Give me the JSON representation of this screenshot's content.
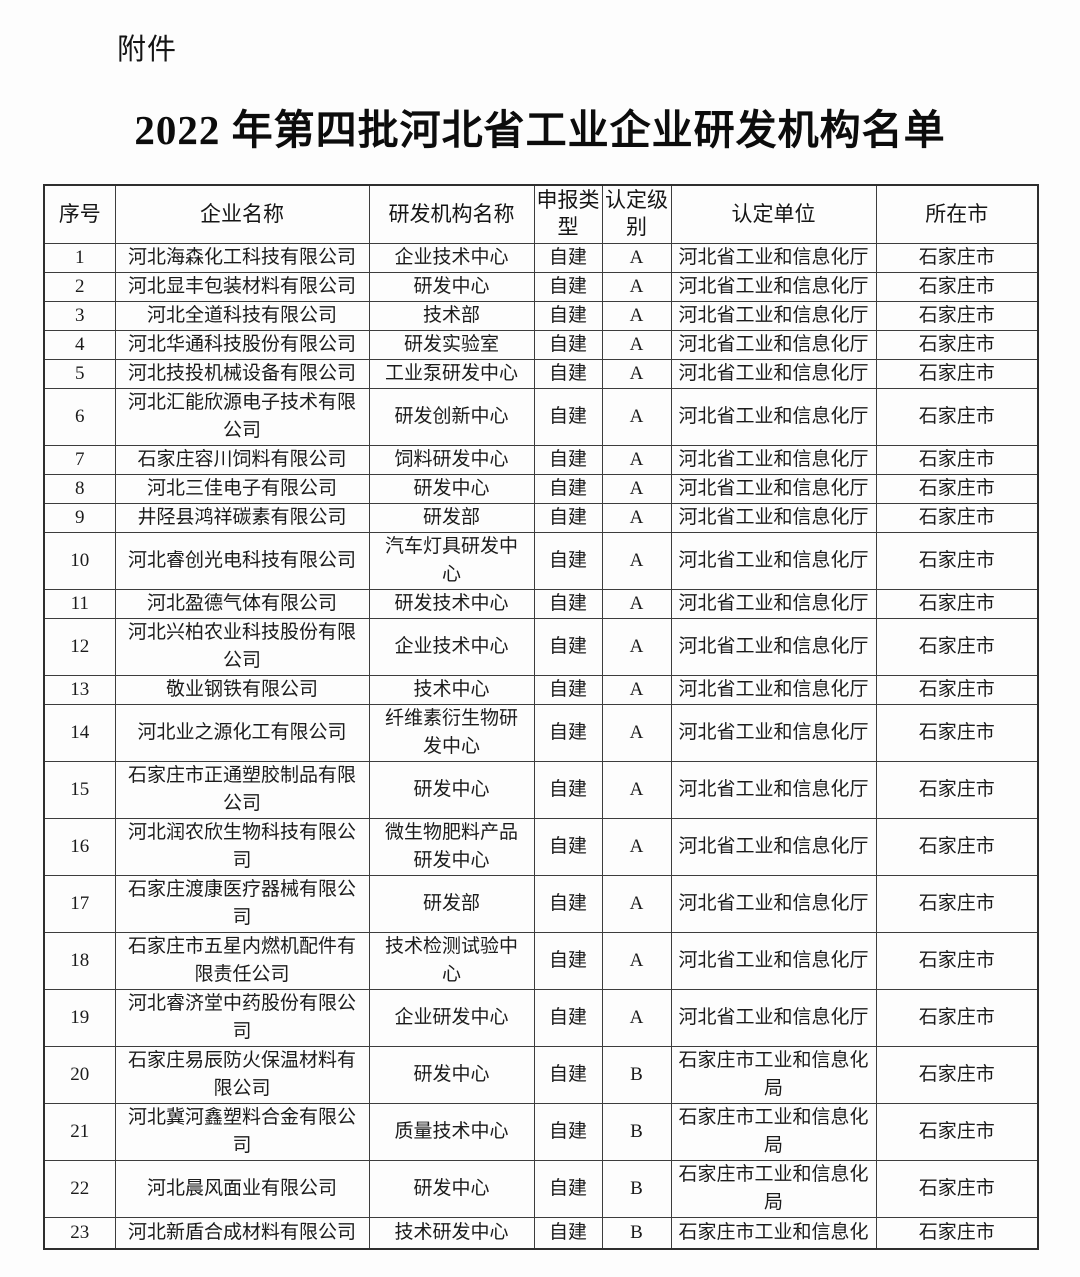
{
  "page": {
    "attachment_label": "附件",
    "title": "2022 年第四批河北省工业企业研发机构名单"
  },
  "table": {
    "headers": [
      "序号",
      "企业名称",
      "研发机构名称",
      "申报类型",
      "认定级别",
      "认定单位",
      "所在市"
    ],
    "rows": [
      [
        "1",
        "河北海森化工科技有限公司",
        "企业技术中心",
        "自建",
        "A",
        "河北省工业和信息化厅",
        "石家庄市"
      ],
      [
        "2",
        "河北显丰包装材料有限公司",
        "研发中心",
        "自建",
        "A",
        "河北省工业和信息化厅",
        "石家庄市"
      ],
      [
        "3",
        "河北全道科技有限公司",
        "技术部",
        "自建",
        "A",
        "河北省工业和信息化厅",
        "石家庄市"
      ],
      [
        "4",
        "河北华通科技股份有限公司",
        "研发实验室",
        "自建",
        "A",
        "河北省工业和信息化厅",
        "石家庄市"
      ],
      [
        "5",
        "河北技投机械设备有限公司",
        "工业泵研发中心",
        "自建",
        "A",
        "河北省工业和信息化厅",
        "石家庄市"
      ],
      [
        "6",
        "河北汇能欣源电子技术有限公司",
        "研发创新中心",
        "自建",
        "A",
        "河北省工业和信息化厅",
        "石家庄市"
      ],
      [
        "7",
        "石家庄容川饲料有限公司",
        "饲料研发中心",
        "自建",
        "A",
        "河北省工业和信息化厅",
        "石家庄市"
      ],
      [
        "8",
        "河北三佳电子有限公司",
        "研发中心",
        "自建",
        "A",
        "河北省工业和信息化厅",
        "石家庄市"
      ],
      [
        "9",
        "井陉县鸿祥碳素有限公司",
        "研发部",
        "自建",
        "A",
        "河北省工业和信息化厅",
        "石家庄市"
      ],
      [
        "10",
        "河北睿创光电科技有限公司",
        "汽车灯具研发中心",
        "自建",
        "A",
        "河北省工业和信息化厅",
        "石家庄市"
      ],
      [
        "11",
        "河北盈德气体有限公司",
        "研发技术中心",
        "自建",
        "A",
        "河北省工业和信息化厅",
        "石家庄市"
      ],
      [
        "12",
        "河北兴柏农业科技股份有限公司",
        "企业技术中心",
        "自建",
        "A",
        "河北省工业和信息化厅",
        "石家庄市"
      ],
      [
        "13",
        "敬业钢铁有限公司",
        "技术中心",
        "自建",
        "A",
        "河北省工业和信息化厅",
        "石家庄市"
      ],
      [
        "14",
        "河北业之源化工有限公司",
        "纤维素衍生物研发中心",
        "自建",
        "A",
        "河北省工业和信息化厅",
        "石家庄市"
      ],
      [
        "15",
        "石家庄市正通塑胶制品有限公司",
        "研发中心",
        "自建",
        "A",
        "河北省工业和信息化厅",
        "石家庄市"
      ],
      [
        "16",
        "河北润农欣生物科技有限公司",
        "微生物肥料产品研发中心",
        "自建",
        "A",
        "河北省工业和信息化厅",
        "石家庄市"
      ],
      [
        "17",
        "石家庄渡康医疗器械有限公司",
        "研发部",
        "自建",
        "A",
        "河北省工业和信息化厅",
        "石家庄市"
      ],
      [
        "18",
        "石家庄市五星内燃机配件有限责任公司",
        "技术检测试验中心",
        "自建",
        "A",
        "河北省工业和信息化厅",
        "石家庄市"
      ],
      [
        "19",
        "河北睿济堂中药股份有限公司",
        "企业研发中心",
        "自建",
        "A",
        "河北省工业和信息化厅",
        "石家庄市"
      ],
      [
        "20",
        "石家庄易辰防火保温材料有限公司",
        "研发中心",
        "自建",
        "B",
        "石家庄市工业和信息化局",
        "石家庄市"
      ],
      [
        "21",
        "河北冀河鑫塑料合金有限公司",
        "质量技术中心",
        "自建",
        "B",
        "石家庄市工业和信息化局",
        "石家庄市"
      ],
      [
        "22",
        "河北晨风面业有限公司",
        "研发中心",
        "自建",
        "B",
        "石家庄市工业和信息化局",
        "石家庄市"
      ],
      [
        "23",
        "河北新盾合成材料有限公司",
        "技术研发中心",
        "自建",
        "B",
        "石家庄市工业和信息化",
        "石家庄市"
      ]
    ]
  }
}
